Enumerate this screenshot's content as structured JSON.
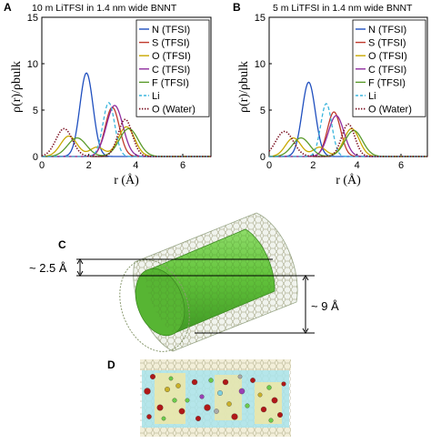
{
  "chart_data": [
    {
      "panel": "A",
      "type": "line",
      "title": "10 m LiTFSI in 1.4 nm wide BNNT",
      "xlabel": "r (Å)",
      "ylabel": "ρ(r)/ρbulk",
      "xlim": [
        0,
        7.2
      ],
      "ylim": [
        0,
        15
      ],
      "xticks": [
        "0",
        "2",
        "4",
        "6"
      ],
      "yticks": [
        "0",
        "5",
        "10",
        "15"
      ],
      "legend_position": "top-right",
      "series": [
        {
          "name": "N (TFSI)",
          "color": "#1f4fbf",
          "style": "solid",
          "peaks": [
            [
              1.9,
              9.0,
              0.28
            ]
          ]
        },
        {
          "name": "S (TFSI)",
          "color": "#c0392b",
          "style": "solid",
          "peaks": [
            [
              3.0,
              5.3,
              0.3
            ]
          ]
        },
        {
          "name": "O (TFSI)",
          "color": "#c8a800",
          "style": "solid",
          "peaks": [
            [
              1.15,
              2.2,
              0.35
            ],
            [
              2.35,
              1.0,
              0.3
            ],
            [
              3.6,
              3.2,
              0.35
            ]
          ]
        },
        {
          "name": "C (TFSI)",
          "color": "#8e2c9e",
          "style": "solid",
          "peaks": [
            [
              3.1,
              5.5,
              0.35
            ]
          ]
        },
        {
          "name": "F (TFSI)",
          "color": "#5a9a2a",
          "style": "solid",
          "peaks": [
            [
              1.5,
              2.0,
              0.4
            ],
            [
              3.7,
              3.0,
              0.4
            ]
          ]
        },
        {
          "name": "Li",
          "color": "#3bb5dd",
          "style": "dash",
          "peaks": [
            [
              2.85,
              5.8,
              0.25
            ]
          ]
        },
        {
          "name": "O (Water)",
          "color": "#7a1020",
          "style": "dot",
          "peaks": [
            [
              0.95,
              3.0,
              0.35
            ],
            [
              3.55,
              4.0,
              0.3
            ]
          ]
        }
      ]
    },
    {
      "panel": "B",
      "type": "line",
      "title": "5 m LiTFSI in 1.4 nm wide BNNT",
      "xlabel": "r (Å)",
      "ylabel": "ρ(r)/ρbulk",
      "xlim": [
        0,
        7.2
      ],
      "ylim": [
        0,
        15
      ],
      "xticks": [
        "0",
        "2",
        "4",
        "6"
      ],
      "yticks": [
        "0",
        "5",
        "10",
        "15"
      ],
      "legend_position": "top-right",
      "series": [
        {
          "name": "N (TFSI)",
          "color": "#1f4fbf",
          "style": "solid",
          "peaks": [
            [
              1.8,
              8.0,
              0.3
            ]
          ]
        },
        {
          "name": "S (TFSI)",
          "color": "#c0392b",
          "style": "solid",
          "peaks": [
            [
              2.95,
              4.8,
              0.3
            ]
          ]
        },
        {
          "name": "O (TFSI)",
          "color": "#c8a800",
          "style": "solid",
          "peaks": [
            [
              1.1,
              2.0,
              0.35
            ],
            [
              2.3,
              1.0,
              0.3
            ],
            [
              3.75,
              3.0,
              0.35
            ]
          ]
        },
        {
          "name": "C (TFSI)",
          "color": "#8e2c9e",
          "style": "solid",
          "peaks": [
            [
              3.05,
              4.4,
              0.35
            ]
          ]
        },
        {
          "name": "F (TFSI)",
          "color": "#5a9a2a",
          "style": "solid",
          "peaks": [
            [
              1.45,
              2.0,
              0.4
            ],
            [
              3.85,
              2.8,
              0.4
            ]
          ]
        },
        {
          "name": "Li",
          "color": "#3bb5dd",
          "style": "dash",
          "peaks": [
            [
              2.6,
              5.7,
              0.25
            ]
          ]
        },
        {
          "name": "O (Water)",
          "color": "#7a1020",
          "style": "dot",
          "peaks": [
            [
              0.7,
              2.7,
              0.4
            ],
            [
              3.6,
              3.5,
              0.3
            ]
          ]
        }
      ]
    }
  ],
  "panel_c": {
    "letter": "C",
    "label_small": "~ 2.5 Å",
    "label_large": "~ 9 Å",
    "tube_color": "#5ec23a"
  },
  "panel_d": {
    "letter": "D"
  }
}
